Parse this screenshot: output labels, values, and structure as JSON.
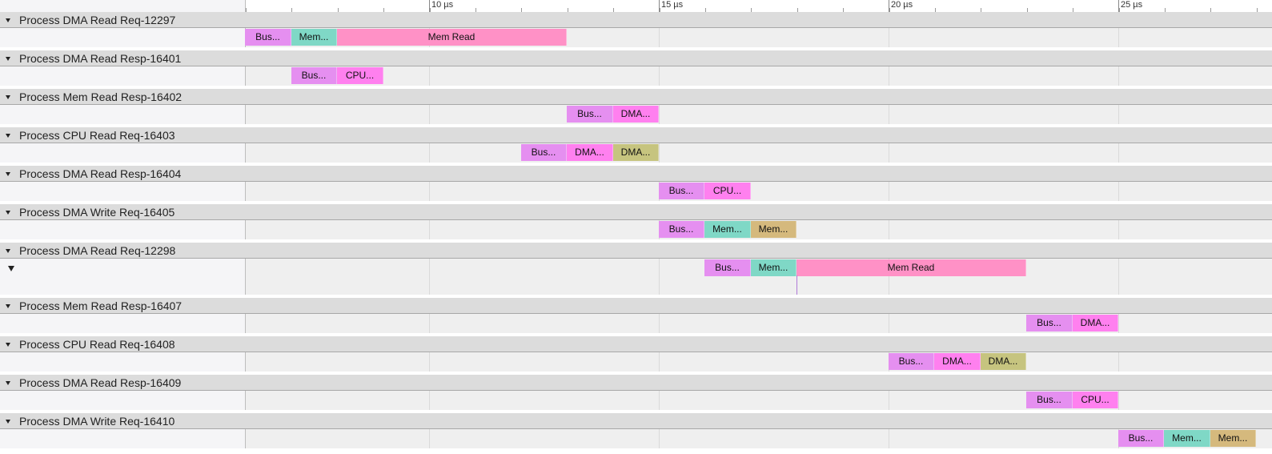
{
  "timeline": {
    "ticks": [
      {
        "value": 10,
        "label": "10 µs"
      },
      {
        "value": 15,
        "label": "15 µs"
      },
      {
        "value": 20,
        "label": "20 µs"
      },
      {
        "value": 25,
        "label": "25 µs"
      }
    ],
    "tracks": [
      {
        "title": "Process DMA Read Req-12297",
        "slices": [
          {
            "label": "Bus...",
            "start": 6,
            "end": 7,
            "color": "#e58ff0"
          },
          {
            "label": "Mem...",
            "start": 7,
            "end": 8,
            "color": "#7fd8c6"
          },
          {
            "label": "Mem Read",
            "start": 8,
            "end": 13,
            "color": "#ff91c6"
          }
        ]
      },
      {
        "title": "Process DMA Read Resp-16401",
        "slices": [
          {
            "label": "Bus...",
            "start": 7,
            "end": 8,
            "color": "#e58ff0"
          },
          {
            "label": "CPU...",
            "start": 8,
            "end": 9,
            "color": "#ff80ef"
          }
        ]
      },
      {
        "title": "Process Mem Read Resp-16402",
        "slices": [
          {
            "label": "Bus...",
            "start": 13,
            "end": 14,
            "color": "#e58ff0"
          },
          {
            "label": "DMA...",
            "start": 14,
            "end": 15,
            "color": "#ff80ef"
          }
        ]
      },
      {
        "title": "Process CPU Read Req-16403",
        "slices": [
          {
            "label": "Bus...",
            "start": 12,
            "end": 13,
            "color": "#e58ff0"
          },
          {
            "label": "DMA...",
            "start": 13,
            "end": 14,
            "color": "#ff80ef"
          },
          {
            "label": "DMA...",
            "start": 14,
            "end": 15,
            "color": "#c6c47f"
          }
        ]
      },
      {
        "title": "Process DMA Read Resp-16404",
        "slices": [
          {
            "label": "Bus...",
            "start": 15,
            "end": 16,
            "color": "#e58ff0"
          },
          {
            "label": "CPU...",
            "start": 16,
            "end": 17,
            "color": "#ff80ef"
          }
        ]
      },
      {
        "title": "Process DMA Write Req-16405",
        "slices": [
          {
            "label": "Bus...",
            "start": 15,
            "end": 16,
            "color": "#e58ff0"
          },
          {
            "label": "Mem...",
            "start": 16,
            "end": 17,
            "color": "#7fd8c6"
          },
          {
            "label": "Mem...",
            "start": 17,
            "end": 18,
            "color": "#d5b97d"
          }
        ]
      },
      {
        "title": "Process DMA Read Req-12298",
        "slices": [
          {
            "label": "Bus...",
            "start": 16,
            "end": 17,
            "color": "#e58ff0"
          },
          {
            "label": "Mem...",
            "start": 17,
            "end": 18,
            "color": "#7fd8c6"
          },
          {
            "label": "Mem Read",
            "start": 18,
            "end": 23,
            "color": "#ff91c6"
          }
        ]
      },
      {
        "title": "Process Mem Read Resp-16407",
        "slices": [
          {
            "label": "Bus...",
            "start": 23,
            "end": 24,
            "color": "#e58ff0"
          },
          {
            "label": "DMA...",
            "start": 24,
            "end": 25,
            "color": "#ff80ef"
          }
        ]
      },
      {
        "title": "Process CPU Read Req-16408",
        "slices": [
          {
            "label": "Bus...",
            "start": 20,
            "end": 21,
            "color": "#e58ff0"
          },
          {
            "label": "DMA...",
            "start": 21,
            "end": 22,
            "color": "#ff80ef"
          },
          {
            "label": "DMA...",
            "start": 22,
            "end": 23,
            "color": "#c6c47f"
          }
        ]
      },
      {
        "title": "Process DMA Read Resp-16409",
        "slices": [
          {
            "label": "Bus...",
            "start": 23,
            "end": 24,
            "color": "#e58ff0"
          },
          {
            "label": "CPU...",
            "start": 24,
            "end": 25,
            "color": "#ff80ef"
          }
        ]
      },
      {
        "title": "Process DMA Write Req-16410",
        "slices": [
          {
            "label": "Bus...",
            "start": 25,
            "end": 26,
            "color": "#e58ff0"
          },
          {
            "label": "Mem...",
            "start": 26,
            "end": 27,
            "color": "#7fd8c6"
          },
          {
            "label": "Mem...",
            "start": 27,
            "end": 28,
            "color": "#d5b97d"
          }
        ]
      }
    ]
  }
}
